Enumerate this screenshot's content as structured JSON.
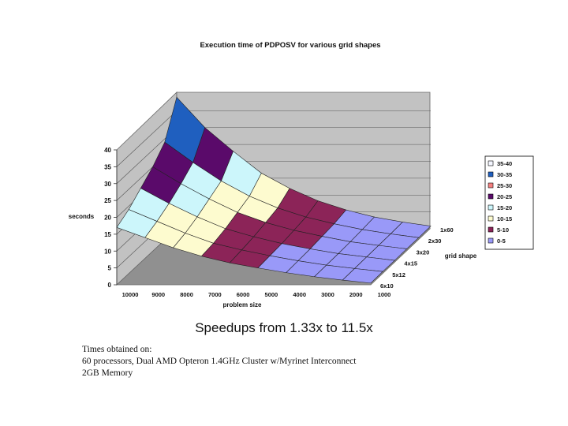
{
  "chart_data": {
    "type": "surface",
    "title": "Execution time of PDPOSV for various grid shapes",
    "xlabel": "problem size",
    "ylabel": "seconds",
    "depth_label": "grid shape",
    "problem_sizes": [
      "10000",
      "9000",
      "8000",
      "7000",
      "6000",
      "5000",
      "4000",
      "3000",
      "2000",
      "1000"
    ],
    "grid_shapes": [
      "6x10",
      "5x12",
      "4x15",
      "3x20",
      "2x30",
      "1x60"
    ],
    "ylim": [
      0,
      40
    ],
    "yticks": [
      "0",
      "5",
      "10",
      "15",
      "20",
      "25",
      "30",
      "35",
      "40"
    ],
    "legend_position": "right",
    "legend": [
      {
        "label": "35-40",
        "color": "#f4f6ff"
      },
      {
        "label": "30-35",
        "color": "#1f5fbf"
      },
      {
        "label": "25-30",
        "color": "#f48080"
      },
      {
        "label": "20-25",
        "color": "#5a0a6a"
      },
      {
        "label": "15-20",
        "color": "#ccf6fb"
      },
      {
        "label": "10-15",
        "color": "#fdfbcf"
      },
      {
        "label": "5-10",
        "color": "#8c2458"
      },
      {
        "label": "0-5",
        "color": "#9999f8"
      }
    ],
    "z_values": [
      [
        17,
        14,
        11,
        8.5,
        6.5,
        5,
        3.6,
        2.4,
        1.4,
        0.5
      ],
      [
        19,
        15.5,
        12,
        9,
        7,
        5.3,
        3.8,
        2.5,
        1.5,
        0.6
      ],
      [
        22,
        17.5,
        13.5,
        10,
        7.6,
        5.6,
        4,
        2.6,
        1.6,
        0.6
      ],
      [
        25,
        20,
        15.5,
        11.5,
        8.5,
        6.2,
        4.4,
        2.8,
        1.7,
        0.7
      ],
      [
        29,
        23,
        17.5,
        13,
        9.5,
        6.8,
        4.8,
        3.1,
        1.8,
        0.7
      ],
      [
        39,
        30,
        23,
        16.5,
        12,
        8.3,
        5.6,
        3.5,
        2,
        0.8
      ]
    ]
  },
  "caption": "Speedups from 1.33x to 11.5x",
  "notes": [
    "Times obtained on:",
    "60 processors, Dual AMD Opteron 1.4GHz Cluster w/Myrinet Interconnect",
    "2GB Memory"
  ]
}
